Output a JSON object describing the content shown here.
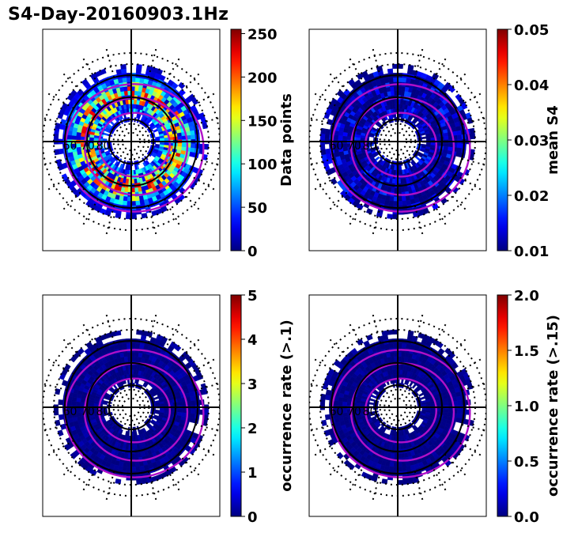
{
  "figure": {
    "title": "S4-Day-20160903.1Hz"
  },
  "chart_data": [
    {
      "type": "heatmap",
      "projection": "polar",
      "title": "",
      "colorbar_label": "Data points",
      "colorbar_range": [
        0,
        255
      ],
      "colorbar_ticks": [
        "0",
        "50",
        "100",
        "150",
        "200",
        "250"
      ],
      "colorbar_tick_values": [
        0,
        50,
        100,
        150,
        200,
        250
      ],
      "colormap": "jet",
      "grid": true,
      "latitude_labels": [
        "60",
        "70",
        "80"
      ],
      "bin_value_range": [
        10,
        230
      ]
    },
    {
      "type": "heatmap",
      "projection": "polar",
      "title": "",
      "colorbar_label": "mean S4",
      "colorbar_range": [
        0.01,
        0.05
      ],
      "colorbar_ticks": [
        "0.01",
        "0.02",
        "0.03",
        "0.04",
        "0.05"
      ],
      "colorbar_tick_values": [
        0.01,
        0.02,
        0.03,
        0.04,
        0.05
      ],
      "colormap": "jet",
      "grid": true,
      "latitude_labels": [
        "60",
        "70",
        "80"
      ],
      "bin_value_range": [
        0.01,
        0.018
      ]
    },
    {
      "type": "heatmap",
      "projection": "polar",
      "title": "",
      "colorbar_label": "occurrence rate (>.1)",
      "colorbar_range": [
        0,
        5
      ],
      "colorbar_ticks": [
        "0",
        "1",
        "2",
        "3",
        "4",
        "5"
      ],
      "colorbar_tick_values": [
        0,
        1,
        2,
        3,
        4,
        5
      ],
      "colormap": "jet",
      "grid": true,
      "latitude_labels": [
        "60",
        "70",
        "80"
      ],
      "bin_value_range": [
        0,
        0.3
      ]
    },
    {
      "type": "heatmap",
      "projection": "polar",
      "title": "",
      "colorbar_label": "occurrence rate (>.15)",
      "colorbar_range": [
        0,
        2
      ],
      "colorbar_ticks": [
        "0.0",
        "0.5",
        "1.0",
        "1.5",
        "2.0"
      ],
      "colorbar_tick_values": [
        0,
        0.5,
        1.0,
        1.5,
        2.0
      ],
      "colormap": "jet",
      "grid": true,
      "latitude_labels": [
        "60",
        "70",
        "80"
      ],
      "bin_value_range": [
        0,
        0.1
      ]
    }
  ],
  "colors": {
    "oval": "#b010c8",
    "frame": "#000000"
  }
}
